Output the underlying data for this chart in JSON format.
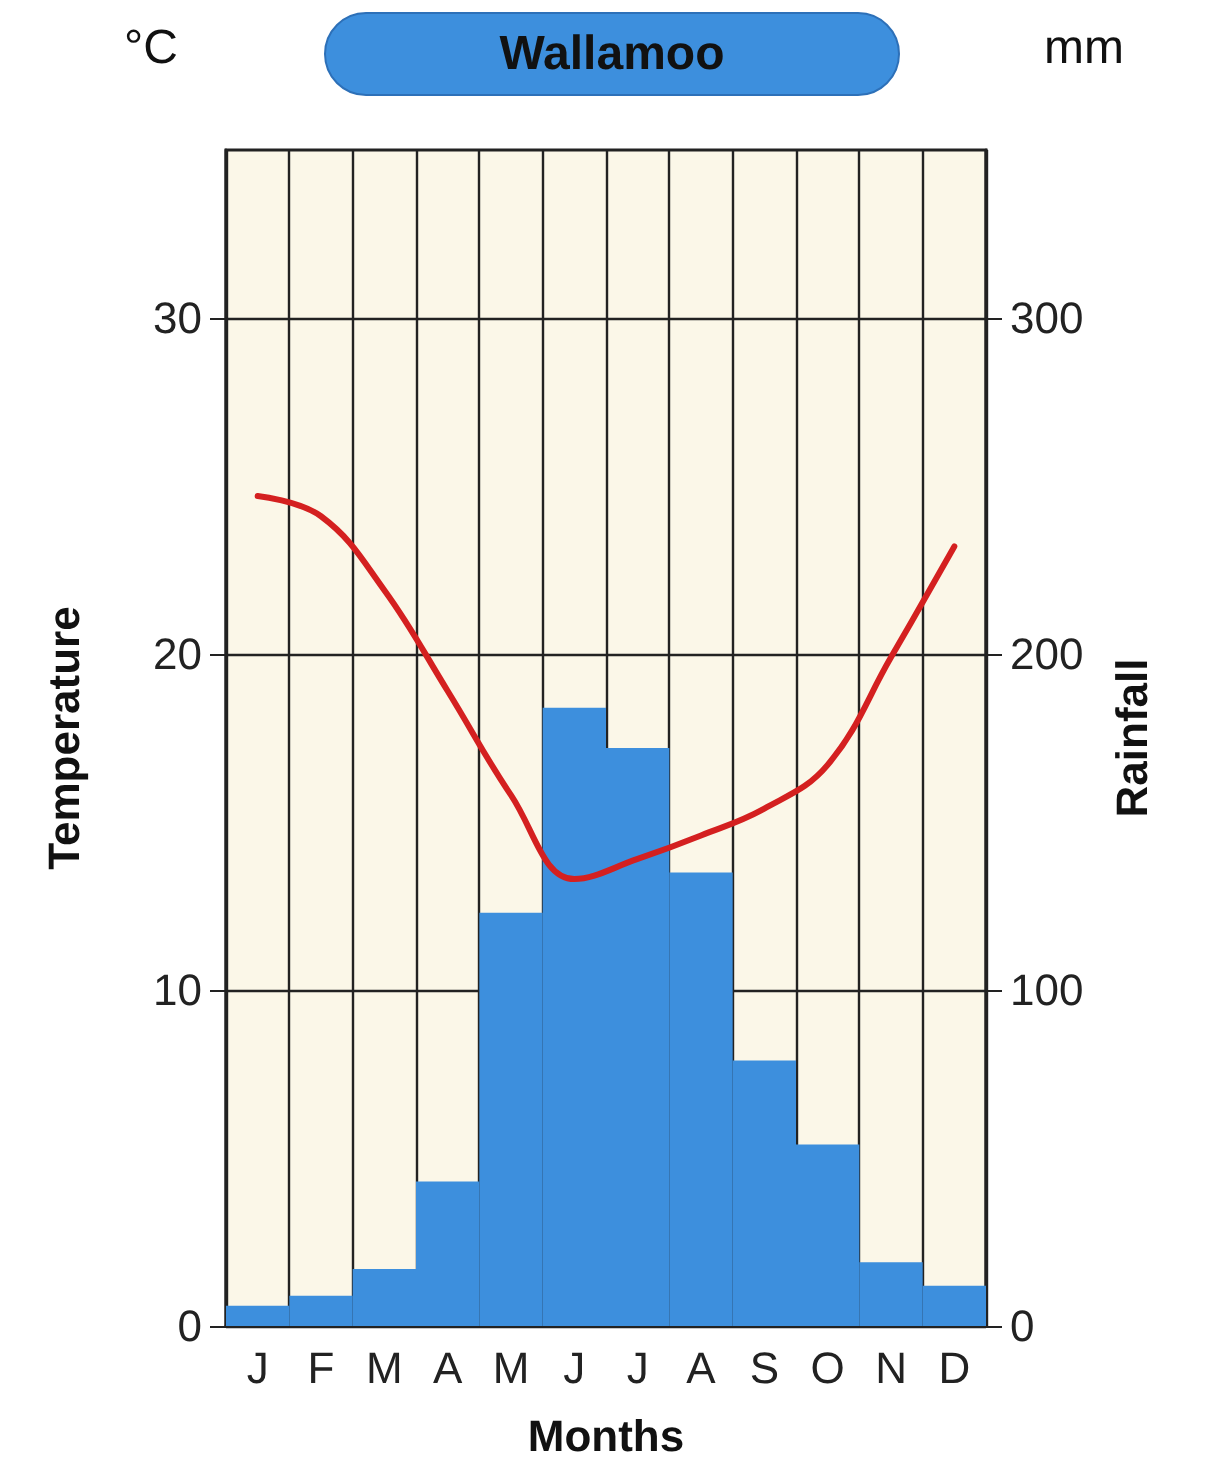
{
  "chart_data": {
    "type": "bar",
    "title": "Wallamoo",
    "xlabel": "Months",
    "ylabel": "Temperature",
    "y2label": "Rainfall",
    "annotations": [
      "°C",
      "mm"
    ],
    "categories": [
      "J",
      "F",
      "M",
      "A",
      "M",
      "J",
      "J",
      "A",
      "S",
      "O",
      "N",
      "D"
    ],
    "series": [
      {
        "axis": "y2",
        "color": "#3d8fdd",
        "values": [
          6,
          9,
          17,
          43,
          123,
          184,
          172,
          135,
          79,
          54,
          19,
          12
        ]
      },
      {
        "type": "line",
        "axis": "y",
        "color": "#d42020",
        "marker": "none",
        "line_style": "solid",
        "values": [
          24.7,
          24.1,
          21.9,
          18.9,
          15.8,
          13.3,
          13.9,
          14.6,
          15.4,
          16.7,
          19.9,
          23.2
        ]
      }
    ],
    "ylim": [
      0,
      35
    ],
    "yticks": [
      0,
      10,
      20,
      30
    ],
    "y2lim": [
      0,
      350
    ],
    "y2ticks": [
      0,
      100,
      200,
      300
    ],
    "grid": true
  }
}
